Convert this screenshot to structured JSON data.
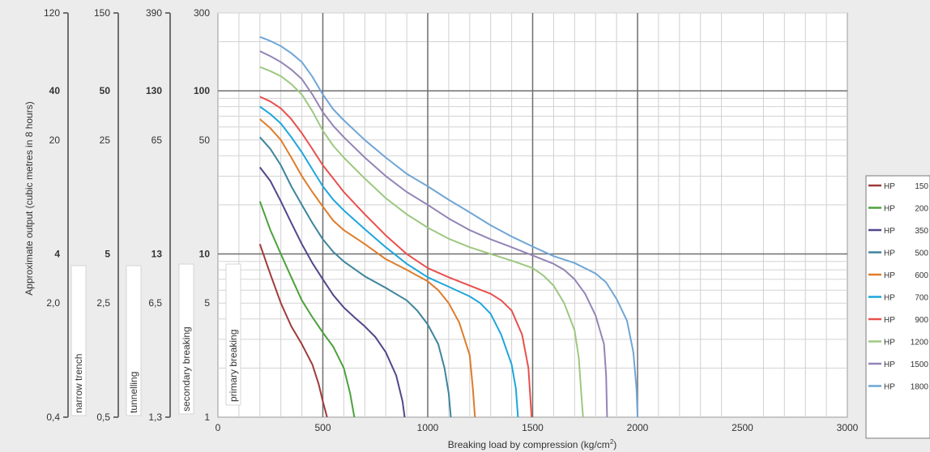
{
  "chart_data": {
    "type": "line",
    "xlabel": "Breaking load by compression (kg/cm²)",
    "ylabel": "Approximate output (cubic metres in 8 hours)",
    "x_ticks": [
      "0",
      "500",
      "1000",
      "1500",
      "2000",
      "2500",
      "3000"
    ],
    "xlim": [
      0,
      3000
    ],
    "ylim": [
      1,
      300
    ],
    "y_scale": "log",
    "grid": true,
    "legend_position": "right",
    "main_axis_ticks": [
      {
        "value": 300,
        "label": "300",
        "bold": false
      },
      {
        "value": 100,
        "label": "100",
        "bold": true
      },
      {
        "value": 50,
        "label": "50",
        "bold": false
      },
      {
        "value": 10,
        "label": "10",
        "bold": true
      },
      {
        "value": 5,
        "label": "5",
        "bold": false
      },
      {
        "value": 1,
        "label": "1",
        "bold": false
      }
    ],
    "secondary_axes": [
      {
        "category": "narrow trench",
        "ticks": [
          {
            "value": 300,
            "label": "120",
            "bold": false
          },
          {
            "value": 100,
            "label": "40",
            "bold": true
          },
          {
            "value": 50,
            "label": "20",
            "bold": false
          },
          {
            "value": 10,
            "label": "4",
            "bold": true
          },
          {
            "value": 5,
            "label": "2,0",
            "bold": false
          },
          {
            "value": 1,
            "label": "0,4",
            "bold": false
          }
        ]
      },
      {
        "category": "tunnelling",
        "ticks": [
          {
            "value": 300,
            "label": "150",
            "bold": false
          },
          {
            "value": 100,
            "label": "50",
            "bold": true
          },
          {
            "value": 50,
            "label": "25",
            "bold": false
          },
          {
            "value": 10,
            "label": "5",
            "bold": true
          },
          {
            "value": 5,
            "label": "2,5",
            "bold": false
          },
          {
            "value": 1,
            "label": "0,5",
            "bold": false
          }
        ]
      },
      {
        "category": "secondary breaking",
        "ticks": [
          {
            "value": 300,
            "label": "390",
            "bold": false
          },
          {
            "value": 100,
            "label": "130",
            "bold": true
          },
          {
            "value": 50,
            "label": "65",
            "bold": false
          },
          {
            "value": 10,
            "label": "13",
            "bold": true
          },
          {
            "value": 5,
            "label": "6,5",
            "bold": false
          },
          {
            "value": 1,
            "label": "1,3",
            "bold": false
          }
        ]
      }
    ],
    "primary_category": "primary breaking",
    "series": [
      {
        "name": "HP",
        "model": "150",
        "color": "#a03a3a",
        "points": [
          [
            200,
            11.5
          ],
          [
            250,
            7.5
          ],
          [
            300,
            5
          ],
          [
            350,
            3.6
          ],
          [
            400,
            2.8
          ],
          [
            450,
            2.1
          ],
          [
            480,
            1.6
          ],
          [
            500,
            1.25
          ],
          [
            520,
            1.0
          ]
        ]
      },
      {
        "name": "HP",
        "model": "200",
        "color": "#4ca23c",
        "points": [
          [
            200,
            21
          ],
          [
            250,
            14
          ],
          [
            300,
            10
          ],
          [
            350,
            7.2
          ],
          [
            400,
            5.2
          ],
          [
            450,
            4.1
          ],
          [
            500,
            3.3
          ],
          [
            550,
            2.7
          ],
          [
            600,
            2.0
          ],
          [
            630,
            1.4
          ],
          [
            650,
            1.0
          ]
        ]
      },
      {
        "name": "HP",
        "model": "350",
        "color": "#55458a",
        "points": [
          [
            200,
            34
          ],
          [
            250,
            28
          ],
          [
            300,
            21
          ],
          [
            350,
            15.5
          ],
          [
            400,
            11.5
          ],
          [
            450,
            8.8
          ],
          [
            500,
            7.0
          ],
          [
            550,
            5.6
          ],
          [
            600,
            4.7
          ],
          [
            650,
            4.1
          ],
          [
            700,
            3.6
          ],
          [
            750,
            3.1
          ],
          [
            800,
            2.5
          ],
          [
            850,
            1.8
          ],
          [
            880,
            1.25
          ],
          [
            890,
            1.0
          ]
        ]
      },
      {
        "name": "HP",
        "model": "500",
        "color": "#3e849c",
        "points": [
          [
            200,
            52
          ],
          [
            250,
            44
          ],
          [
            300,
            35
          ],
          [
            350,
            26
          ],
          [
            400,
            20
          ],
          [
            450,
            15.5
          ],
          [
            500,
            12.3
          ],
          [
            550,
            10.3
          ],
          [
            600,
            9.0
          ],
          [
            700,
            7.3
          ],
          [
            800,
            6.2
          ],
          [
            900,
            5.2
          ],
          [
            950,
            4.5
          ],
          [
            1000,
            3.7
          ],
          [
            1050,
            2.8
          ],
          [
            1080,
            2.0
          ],
          [
            1100,
            1.4
          ],
          [
            1110,
            1.0
          ]
        ]
      },
      {
        "name": "HP",
        "model": "600",
        "color": "#de7c2a",
        "points": [
          [
            200,
            67
          ],
          [
            250,
            59
          ],
          [
            300,
            50
          ],
          [
            350,
            39
          ],
          [
            400,
            30
          ],
          [
            450,
            24
          ],
          [
            500,
            19.5
          ],
          [
            550,
            16
          ],
          [
            600,
            14
          ],
          [
            700,
            11.5
          ],
          [
            800,
            9.3
          ],
          [
            900,
            8.0
          ],
          [
            1000,
            6.8
          ],
          [
            1050,
            6.0
          ],
          [
            1100,
            5.0
          ],
          [
            1150,
            3.8
          ],
          [
            1200,
            2.4
          ],
          [
            1215,
            1.5
          ],
          [
            1225,
            1.0
          ]
        ]
      },
      {
        "name": "HP",
        "model": "700",
        "color": "#1ea6dc",
        "points": [
          [
            200,
            80
          ],
          [
            250,
            72
          ],
          [
            300,
            63
          ],
          [
            350,
            52
          ],
          [
            400,
            42
          ],
          [
            450,
            33
          ],
          [
            500,
            26
          ],
          [
            550,
            21.5
          ],
          [
            600,
            18.5
          ],
          [
            700,
            14.2
          ],
          [
            800,
            11
          ],
          [
            900,
            8.7
          ],
          [
            1000,
            7.2
          ],
          [
            1100,
            6.3
          ],
          [
            1200,
            5.5
          ],
          [
            1250,
            5.0
          ],
          [
            1300,
            4.3
          ],
          [
            1350,
            3.2
          ],
          [
            1400,
            2.1
          ],
          [
            1420,
            1.5
          ],
          [
            1430,
            1.0
          ]
        ]
      },
      {
        "name": "HP",
        "model": "900",
        "color": "#e8504e",
        "points": [
          [
            200,
            92
          ],
          [
            250,
            86
          ],
          [
            300,
            78
          ],
          [
            350,
            67
          ],
          [
            400,
            55
          ],
          [
            450,
            44
          ],
          [
            500,
            35
          ],
          [
            550,
            29
          ],
          [
            600,
            24
          ],
          [
            700,
            17.5
          ],
          [
            800,
            13
          ],
          [
            900,
            10
          ],
          [
            1000,
            8.2
          ],
          [
            1100,
            7.2
          ],
          [
            1200,
            6.4
          ],
          [
            1300,
            5.7
          ],
          [
            1350,
            5.2
          ],
          [
            1400,
            4.5
          ],
          [
            1450,
            3.2
          ],
          [
            1480,
            2.0
          ],
          [
            1495,
            1.0
          ]
        ]
      },
      {
        "name": "HP",
        "model": "1200",
        "color": "#9dc880",
        "points": [
          [
            200,
            140
          ],
          [
            250,
            132
          ],
          [
            300,
            123
          ],
          [
            350,
            110
          ],
          [
            400,
            95
          ],
          [
            450,
            75
          ],
          [
            500,
            57
          ],
          [
            550,
            46
          ],
          [
            600,
            39
          ],
          [
            700,
            29
          ],
          [
            800,
            22
          ],
          [
            900,
            17.5
          ],
          [
            1000,
            14.5
          ],
          [
            1100,
            12.4
          ],
          [
            1200,
            11
          ],
          [
            1300,
            10
          ],
          [
            1400,
            9.1
          ],
          [
            1500,
            8.2
          ],
          [
            1550,
            7.4
          ],
          [
            1600,
            6.4
          ],
          [
            1650,
            5.0
          ],
          [
            1700,
            3.4
          ],
          [
            1720,
            2.3
          ],
          [
            1730,
            1.5
          ],
          [
            1740,
            1.0
          ]
        ]
      },
      {
        "name": "HP",
        "model": "1500",
        "color": "#9484b6",
        "points": [
          [
            200,
            175
          ],
          [
            250,
            163
          ],
          [
            300,
            150
          ],
          [
            350,
            135
          ],
          [
            400,
            118
          ],
          [
            450,
            95
          ],
          [
            500,
            74
          ],
          [
            550,
            61
          ],
          [
            600,
            52
          ],
          [
            700,
            39
          ],
          [
            800,
            30
          ],
          [
            900,
            24
          ],
          [
            1000,
            20
          ],
          [
            1100,
            16.5
          ],
          [
            1200,
            14
          ],
          [
            1300,
            12.3
          ],
          [
            1400,
            11
          ],
          [
            1500,
            9.8
          ],
          [
            1600,
            8.7
          ],
          [
            1650,
            8.0
          ],
          [
            1700,
            7.0
          ],
          [
            1750,
            5.7
          ],
          [
            1800,
            4.2
          ],
          [
            1840,
            2.8
          ],
          [
            1850,
            1.8
          ],
          [
            1855,
            1.0
          ]
        ]
      },
      {
        "name": "HP",
        "model": "1800",
        "color": "#6fa6d6",
        "points": [
          [
            200,
            214
          ],
          [
            250,
            202
          ],
          [
            300,
            188
          ],
          [
            350,
            170
          ],
          [
            400,
            150
          ],
          [
            450,
            122
          ],
          [
            500,
            95
          ],
          [
            550,
            77
          ],
          [
            600,
            66
          ],
          [
            700,
            50
          ],
          [
            800,
            39
          ],
          [
            900,
            31
          ],
          [
            1000,
            26
          ],
          [
            1100,
            21.5
          ],
          [
            1200,
            18
          ],
          [
            1300,
            15
          ],
          [
            1400,
            12.8
          ],
          [
            1500,
            11.1
          ],
          [
            1600,
            9.7
          ],
          [
            1700,
            8.8
          ],
          [
            1800,
            7.6
          ],
          [
            1850,
            6.7
          ],
          [
            1900,
            5.3
          ],
          [
            1950,
            3.9
          ],
          [
            1980,
            2.5
          ],
          [
            1995,
            1.5
          ],
          [
            2000,
            1.0
          ]
        ]
      }
    ]
  }
}
